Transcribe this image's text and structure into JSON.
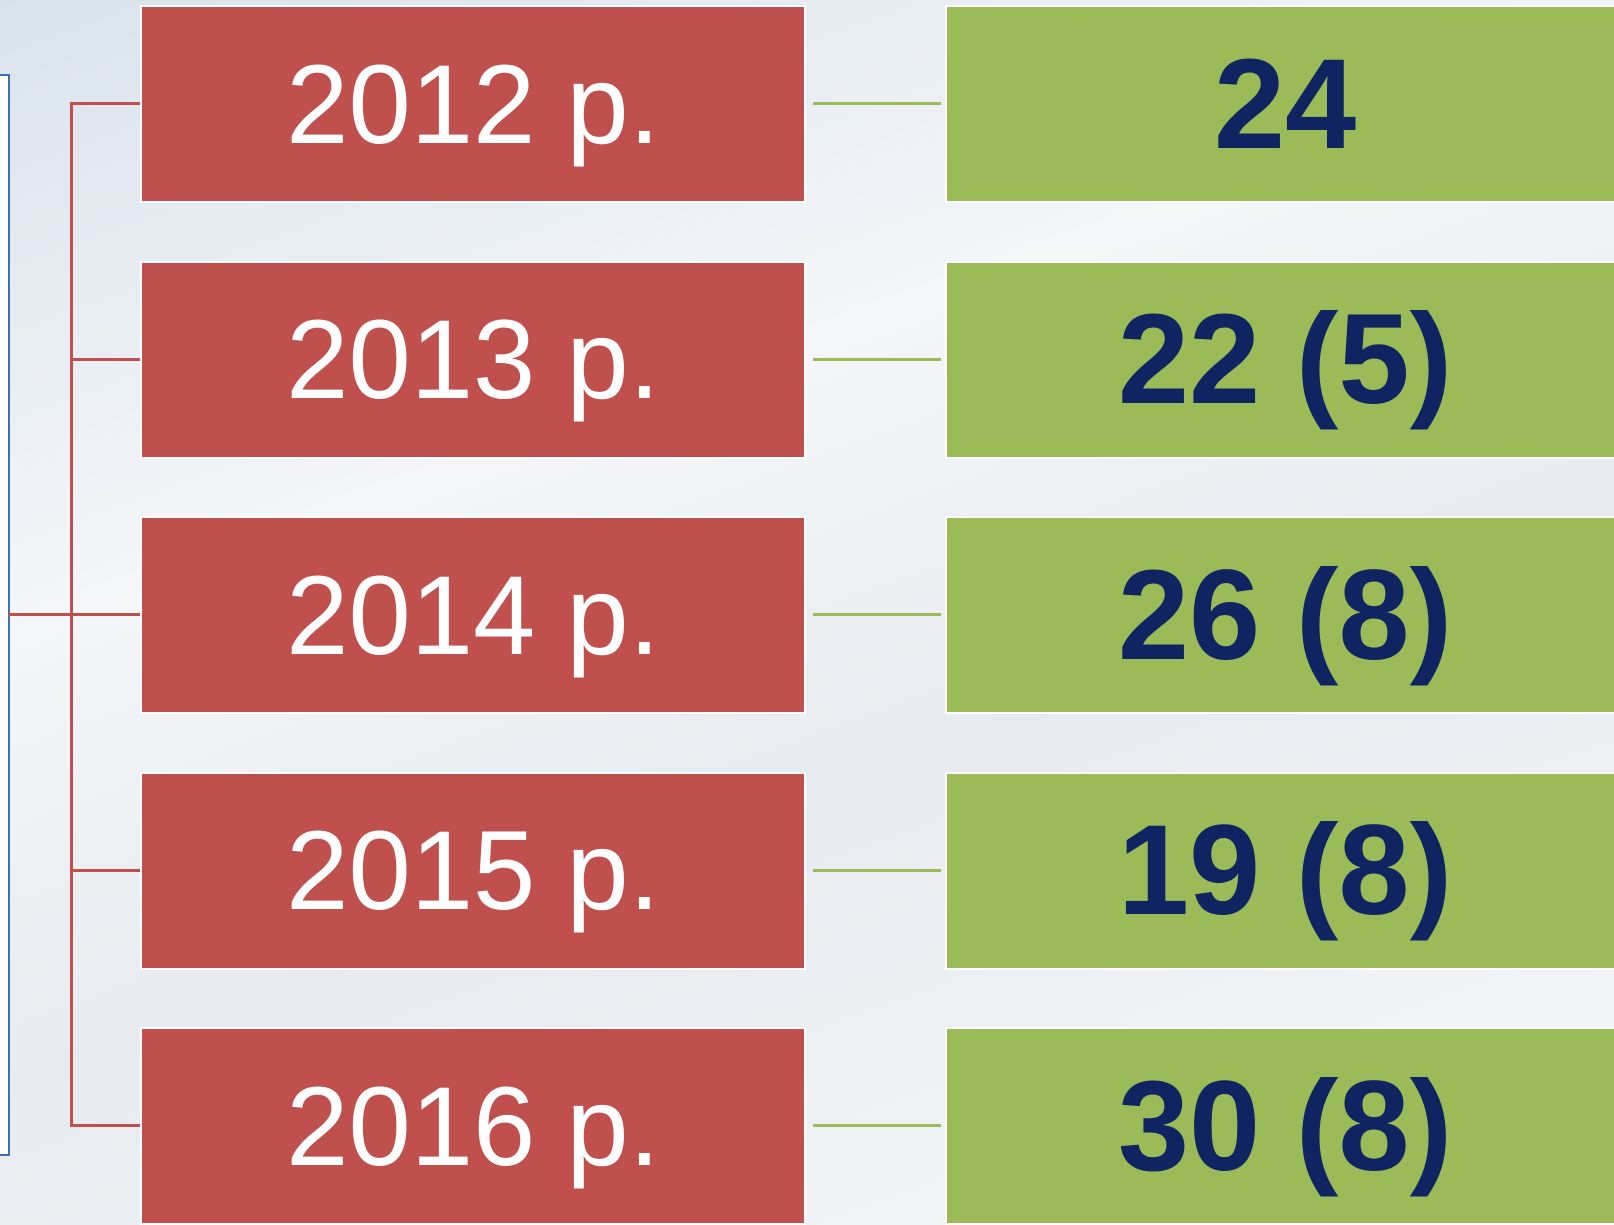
{
  "rows": [
    {
      "year": "2012 р.",
      "value": "24"
    },
    {
      "year": "2013 р.",
      "value": "22 (5)"
    },
    {
      "year": "2014 р.",
      "value": "26 (8)"
    },
    {
      "year": "2015 р.",
      "value": "19 (8)"
    },
    {
      "year": "2016 р.",
      "value": "30 (8)"
    }
  ]
}
